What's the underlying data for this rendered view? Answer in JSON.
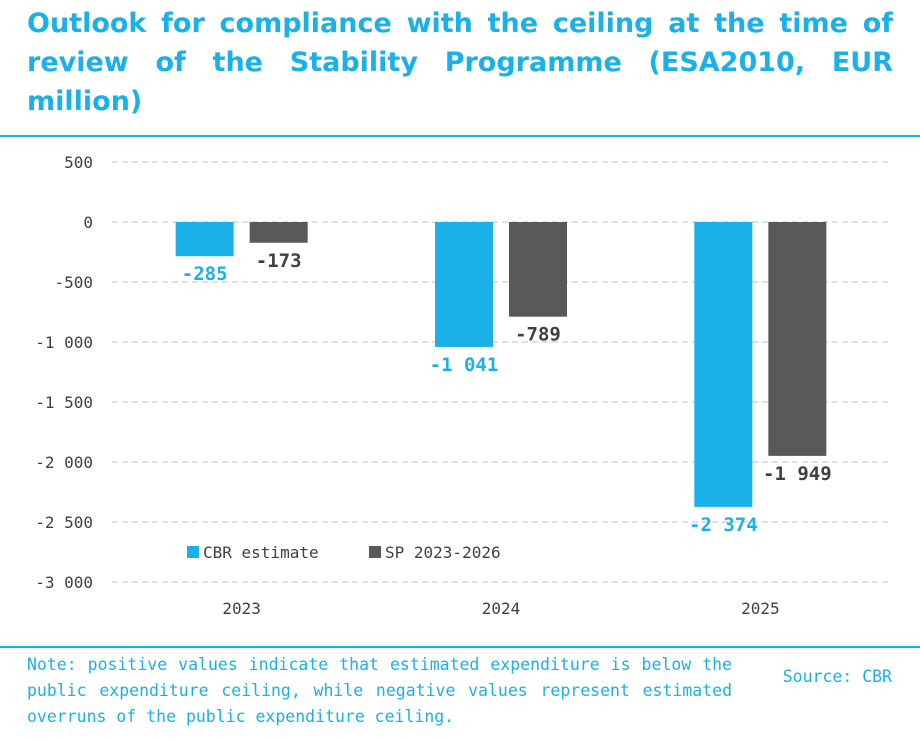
{
  "title": "Outlook for compliance with the ceiling at the time of review of the Stability Programme (ESA2010, EUR million)",
  "note": "Note: positive values indicate that estimated expenditure is below the public expenditure ceiling, while negative values represent estimated overruns of the public expenditure ceiling.",
  "source": "Source: CBR",
  "colors": {
    "accent": "#1ab0e8",
    "cbr": "#1ab0e8",
    "sp": "#595959",
    "grid": "#bfbfbf",
    "axis_text": "#404040"
  },
  "chart_data": {
    "type": "bar",
    "title": "",
    "xlabel": "",
    "ylabel": "",
    "categories": [
      "2023",
      "2024",
      "2025"
    ],
    "series": [
      {
        "name": "CBR estimate",
        "values": [
          -285,
          -1041,
          -2374
        ],
        "labels": [
          "-285",
          "-1 041",
          "-2 374"
        ]
      },
      {
        "name": "SP 2023-2026",
        "values": [
          -173,
          -789,
          -1949
        ],
        "labels": [
          "-173",
          "-789",
          "-1 949"
        ]
      }
    ],
    "ylim": [
      -3000,
      500
    ],
    "yticks": [
      500,
      0,
      -500,
      -1000,
      -1500,
      -2000,
      -2500,
      -3000
    ],
    "ytick_labels": [
      "500",
      "0",
      "-500",
      "-1 000",
      "-1 500",
      "-2 000",
      "-2 500",
      "-3 000"
    ],
    "grid": true,
    "legend_position": "bottom-left"
  }
}
